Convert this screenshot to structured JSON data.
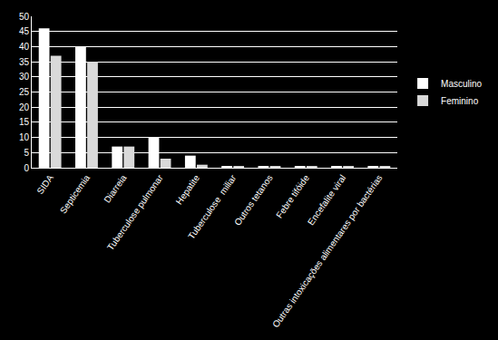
{
  "chart_data": {
    "type": "bar",
    "categories": [
      "SIDA",
      "Septicemia",
      "Diarreia",
      "Tuberculose pulmonar",
      "Hepatite",
      "Tuberculose  miliar",
      "Outros tetanos",
      "Febre tifóide",
      "Encefalite viral",
      "Outras intoxicações alimentares por bactérias"
    ],
    "series": [
      {
        "name": "Masculino",
        "color": "#ffffff",
        "values": [
          46,
          40,
          7,
          10,
          4,
          0.5,
          0.5,
          0.5,
          0.5,
          0.5
        ]
      },
      {
        "name": "Feminino",
        "color": "#d9d9d9",
        "values": [
          37,
          35,
          7,
          3,
          1,
          0.5,
          0.5,
          0.5,
          0.5,
          0.5
        ]
      }
    ],
    "ylim": [
      0,
      50
    ],
    "yticks": [
      0,
      5,
      10,
      15,
      20,
      25,
      30,
      35,
      40,
      45,
      50
    ],
    "grid": true,
    "legend": "right"
  }
}
